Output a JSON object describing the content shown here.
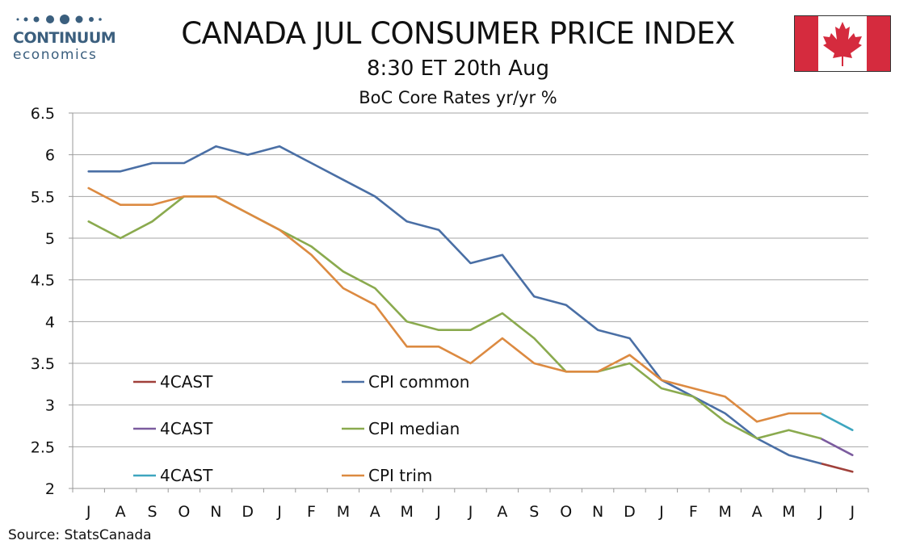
{
  "header": {
    "logo_top": "CONTINUUM",
    "logo_bottom": "economics",
    "title": "CANADA JUL CONSUMER PRICE INDEX",
    "subtitle": "8:30 ET 20th Aug"
  },
  "footer": {
    "source": "Source: StatsCanada"
  },
  "colors": {
    "logo": "#3b5f7e",
    "flag_red": "#d52b3e",
    "cpi_common": "#4a6fa5",
    "cpi_median": "#8aaa4e",
    "cpi_trim": "#dc8a41",
    "forecast_common": "#a0403a",
    "forecast_median": "#7b5b9e",
    "forecast_trim": "#3ea6bf"
  },
  "chart_data": {
    "type": "line",
    "title": "BoC Core Rates yr/yr %",
    "xlabel": "",
    "ylabel": "",
    "categories": [
      "J",
      "A",
      "S",
      "O",
      "N",
      "D",
      "J",
      "F",
      "M",
      "A",
      "M",
      "J",
      "J",
      "A",
      "S",
      "O",
      "N",
      "D",
      "J",
      "F",
      "M",
      "A",
      "M",
      "J",
      "J"
    ],
    "ylim": [
      2,
      6.5
    ],
    "yticks": [
      "2",
      "2.5",
      "3",
      "3.5",
      "4",
      "4.5",
      "5",
      "5.5",
      "6",
      "6.5"
    ],
    "grid": true,
    "legend_position": "bottom-left",
    "series": [
      {
        "name": "CPI common",
        "color": "#4a6fa5",
        "values": [
          5.8,
          5.8,
          5.9,
          5.9,
          6.1,
          6.0,
          6.1,
          5.9,
          5.7,
          5.5,
          5.2,
          5.1,
          4.7,
          4.8,
          4.3,
          4.2,
          3.9,
          3.8,
          3.3,
          3.1,
          2.9,
          2.6,
          2.4,
          2.3,
          null
        ]
      },
      {
        "name": "CPI median",
        "color": "#8aaa4e",
        "values": [
          5.2,
          5.0,
          5.2,
          5.5,
          5.5,
          5.3,
          5.1,
          4.9,
          4.6,
          4.4,
          4.0,
          3.9,
          3.9,
          4.1,
          3.8,
          3.4,
          3.4,
          3.5,
          3.2,
          3.1,
          2.8,
          2.6,
          2.7,
          2.6,
          null
        ]
      },
      {
        "name": "CPI trim",
        "color": "#dc8a41",
        "values": [
          5.6,
          5.4,
          5.4,
          5.5,
          5.5,
          5.3,
          5.1,
          4.8,
          4.4,
          4.2,
          3.7,
          3.7,
          3.5,
          3.8,
          3.5,
          3.4,
          3.4,
          3.6,
          3.3,
          3.2,
          3.1,
          2.8,
          2.9,
          2.9,
          null
        ]
      },
      {
        "name": "4CAST",
        "color": "#a0403a",
        "values": [
          null,
          null,
          null,
          null,
          null,
          null,
          null,
          null,
          null,
          null,
          null,
          null,
          null,
          null,
          null,
          null,
          null,
          null,
          null,
          null,
          null,
          null,
          null,
          2.3,
          2.2
        ]
      },
      {
        "name": "4CAST",
        "color": "#7b5b9e",
        "values": [
          null,
          null,
          null,
          null,
          null,
          null,
          null,
          null,
          null,
          null,
          null,
          null,
          null,
          null,
          null,
          null,
          null,
          null,
          null,
          null,
          null,
          null,
          null,
          2.6,
          2.4
        ]
      },
      {
        "name": "4CAST",
        "color": "#3ea6bf",
        "values": [
          null,
          null,
          null,
          null,
          null,
          null,
          null,
          null,
          null,
          null,
          null,
          null,
          null,
          null,
          null,
          null,
          null,
          null,
          null,
          null,
          null,
          null,
          null,
          2.9,
          2.7
        ]
      }
    ],
    "legend": [
      {
        "label": "4CAST",
        "color": "#a0403a"
      },
      {
        "label": "CPI common",
        "color": "#4a6fa5"
      },
      {
        "label": "4CAST",
        "color": "#7b5b9e"
      },
      {
        "label": "CPI median",
        "color": "#8aaa4e"
      },
      {
        "label": "4CAST",
        "color": "#3ea6bf"
      },
      {
        "label": "CPI trim",
        "color": "#dc8a41"
      }
    ]
  }
}
